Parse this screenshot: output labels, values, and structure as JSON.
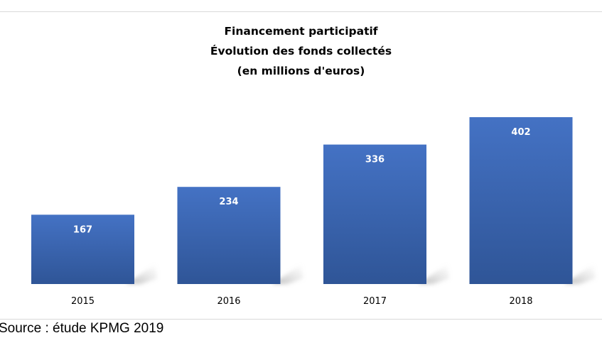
{
  "chart_data": {
    "type": "bar",
    "title_lines": [
      "Financement participatif",
      "Évolution des fonds collectés",
      "(en millions d'euros)"
    ],
    "categories": [
      "2015",
      "2016",
      "2017",
      "2018"
    ],
    "values": [
      167,
      234,
      336,
      402
    ],
    "ylim": [
      0,
      402
    ],
    "xlabel": "",
    "ylabel": "",
    "grid": false,
    "legend": "none",
    "bar_color": "#4472c4",
    "bar_color_dark": "#2f5597"
  },
  "source": "Source : étude KPMG 2019"
}
